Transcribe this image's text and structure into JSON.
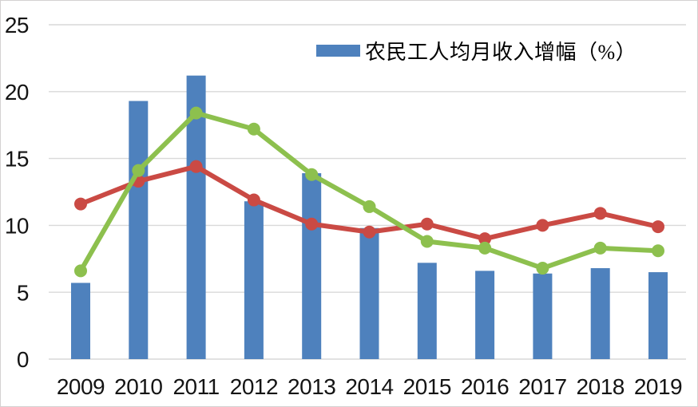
{
  "window": {
    "background": "#ffffff",
    "border_color": "#d4d1d1"
  },
  "legend": {
    "label": "农民工人均月收入增幅（%）",
    "swatch_color": "#4e81bd"
  },
  "chart_data": {
    "type": "bar",
    "title": "",
    "xlabel": "",
    "ylabel": "",
    "categories": [
      "2009",
      "2010",
      "2011",
      "2012",
      "2013",
      "2014",
      "2015",
      "2016",
      "2017",
      "2018",
      "2019"
    ],
    "series": [
      {
        "name": "农民工人均月收入增幅（%）",
        "kind": "bar",
        "color": "#4e81bd",
        "in_legend": true,
        "values": [
          5.7,
          19.3,
          21.2,
          11.8,
          13.9,
          9.8,
          7.2,
          6.6,
          6.4,
          6.8,
          6.5
        ]
      },
      {
        "name": "red-line-series",
        "kind": "line",
        "color": "#ca4a44",
        "in_legend": false,
        "values": [
          11.6,
          13.3,
          14.4,
          11.9,
          10.1,
          9.5,
          10.1,
          9.0,
          10.0,
          10.9,
          9.9
        ]
      },
      {
        "name": "green-line-series",
        "kind": "line",
        "color": "#8dc04e",
        "in_legend": false,
        "values": [
          6.6,
          14.1,
          18.4,
          17.2,
          13.8,
          11.4,
          8.8,
          8.3,
          6.8,
          8.3,
          8.1
        ]
      }
    ],
    "ylim": [
      0,
      25
    ],
    "yticks": [
      0,
      5,
      10,
      15,
      20,
      25
    ],
    "grid": true,
    "gridline_color": "#d9d9d9",
    "legend_position": "top-center"
  }
}
